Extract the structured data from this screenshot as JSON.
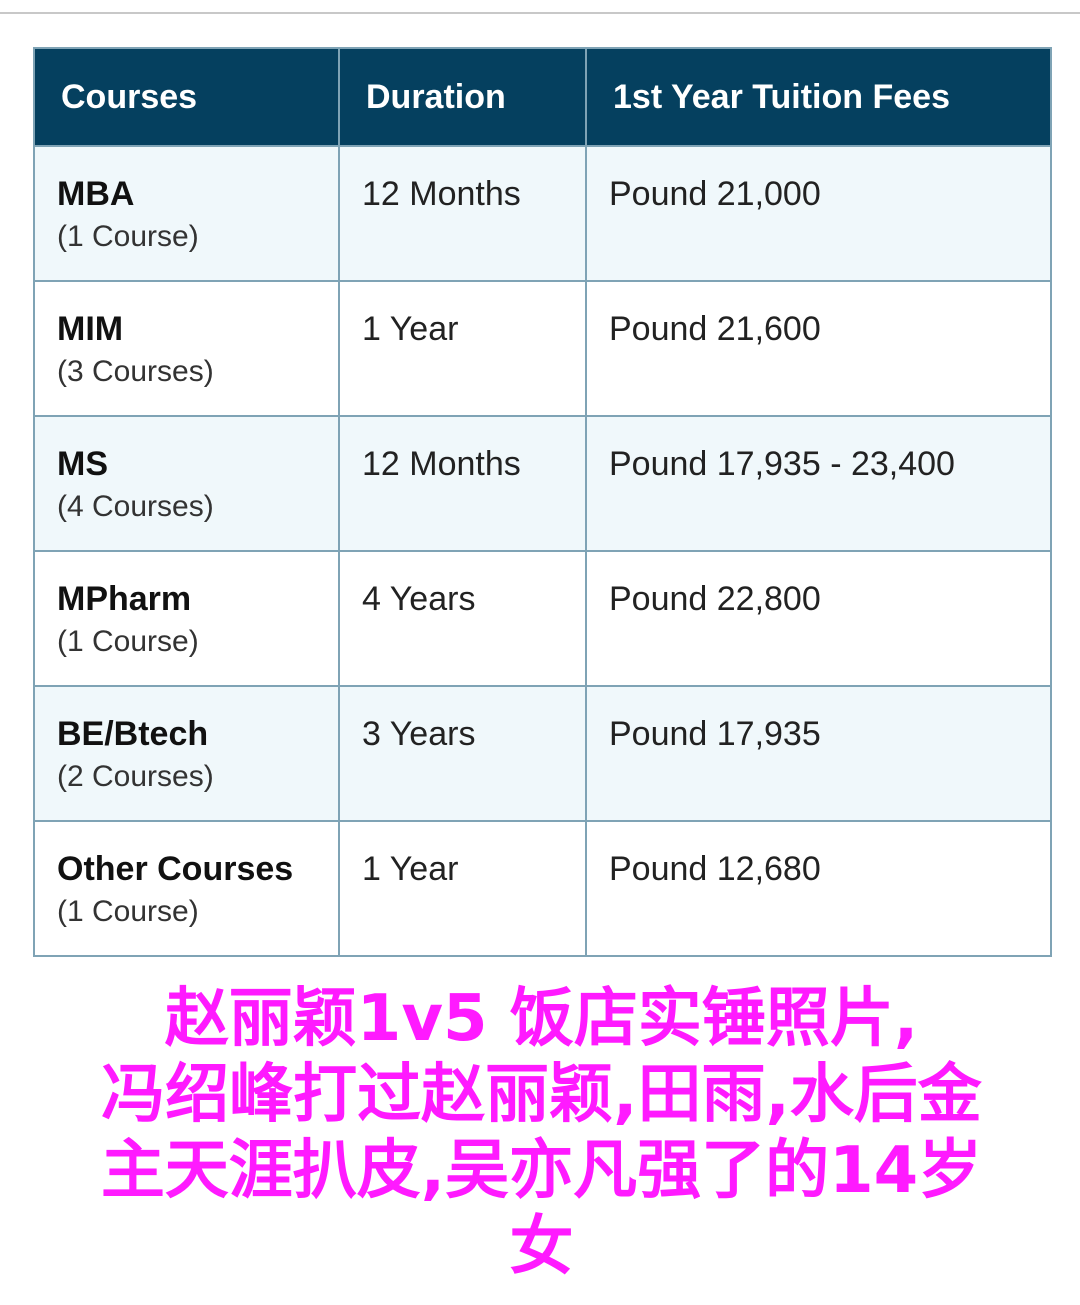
{
  "table": {
    "headers": [
      "Courses",
      "Duration",
      "1st Year Tuition Fees"
    ],
    "rows": [
      {
        "course": "MBA",
        "count": "(1 Course)",
        "duration": "12 Months",
        "fees": "Pound 21,000"
      },
      {
        "course": "MIM",
        "count": "(3 Courses)",
        "duration": "1 Year",
        "fees": "Pound 21,600"
      },
      {
        "course": "MS",
        "count": "(4 Courses)",
        "duration": "12 Months",
        "fees": "Pound 17,935 - 23,400"
      },
      {
        "course": "MPharm",
        "count": "(1 Course)",
        "duration": "4 Years",
        "fees": "Pound 22,800"
      },
      {
        "course": "BE/Btech",
        "count": "(2 Courses)",
        "duration": "3 Years",
        "fees": "Pound 17,935"
      },
      {
        "course": "Other Courses",
        "count": "(1 Course)",
        "duration": "1 Year",
        "fees": "Pound 12,680"
      }
    ]
  },
  "overlay": {
    "lines": [
      "赵丽颖1v5  饭店实锤照片,",
      "冯绍峰打过赵丽颖,田雨,水后金",
      "主天涯扒皮,吴亦凡强了的14岁",
      "女"
    ],
    "color": "#ff1aff"
  },
  "colors": {
    "header_bg": "#05405f",
    "row_alt_bg": "#f0f8fb",
    "border": "#7fa3b5"
  }
}
